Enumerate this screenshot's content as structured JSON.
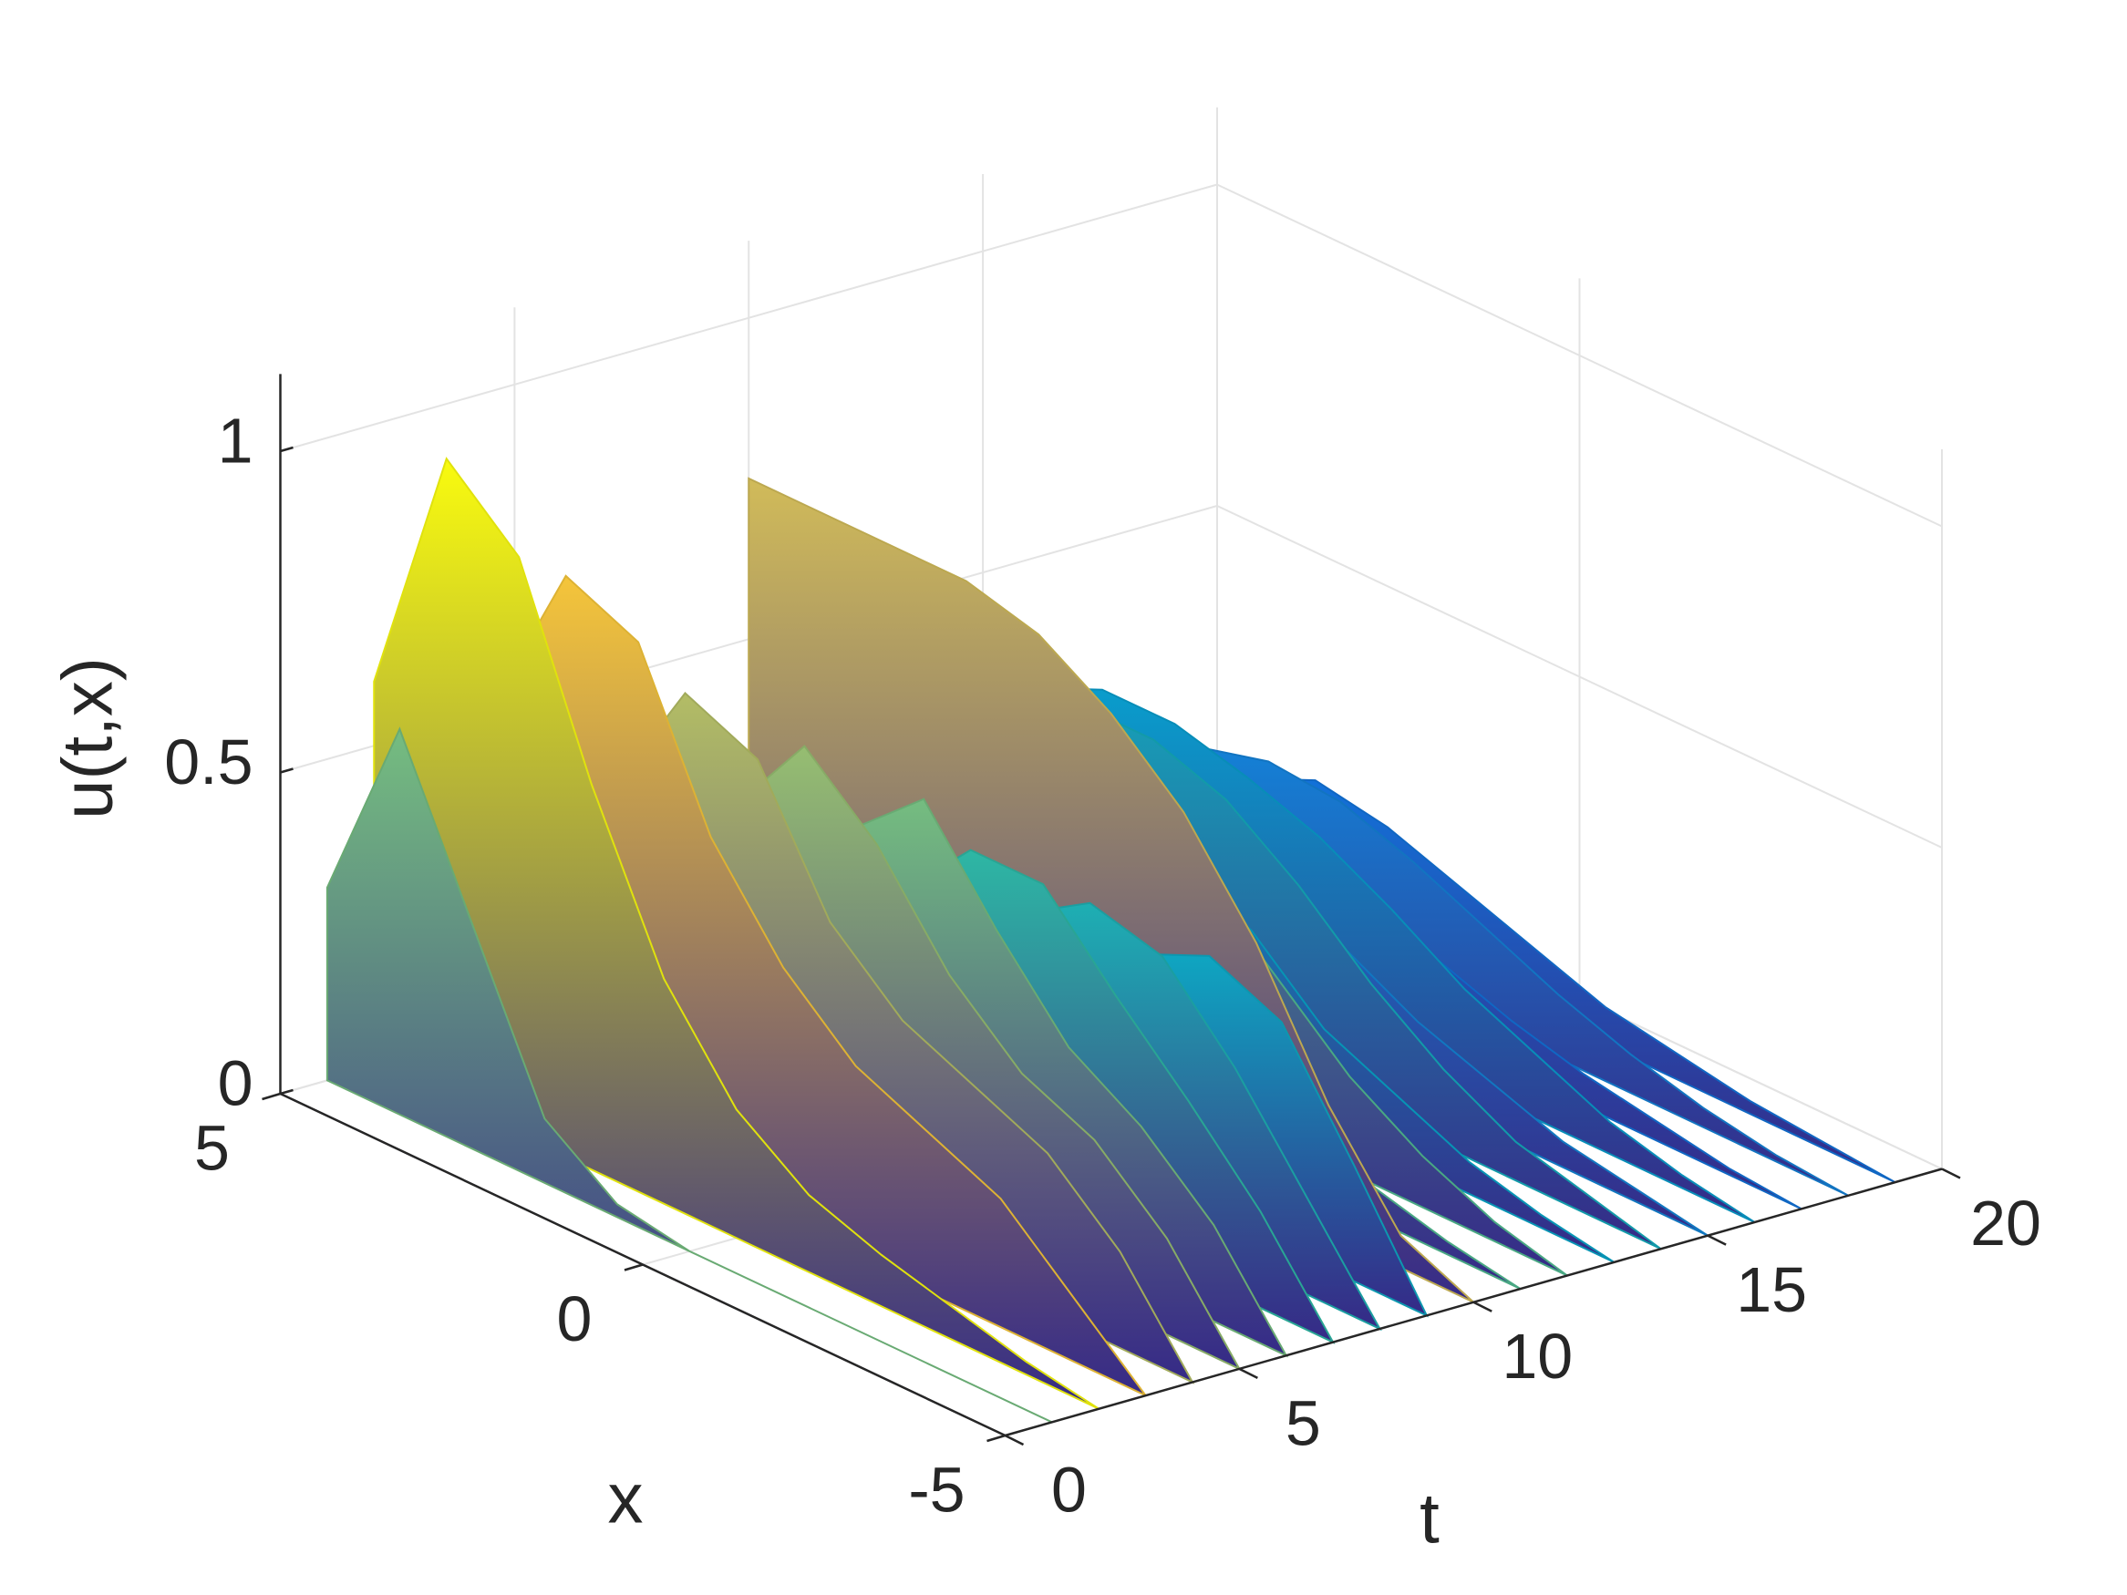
{
  "chart_data": {
    "type": "waterfall3d",
    "xlabel": "x",
    "ylabel": "t",
    "zlabel": "u(t,x)",
    "x": [
      -5,
      -4,
      -3,
      -2,
      -1,
      0,
      1,
      2,
      3,
      4,
      5
    ],
    "series": [
      {
        "t": 0,
        "values": [
          0,
          0,
          0,
          0,
          0,
          0,
          0,
          0,
          0,
          0,
          0
        ]
      },
      {
        "t": 1,
        "values": [
          0,
          0,
          0,
          0,
          0,
          0,
          0.02,
          0.1,
          0.35,
          0.6,
          0.3
        ]
      },
      {
        "t": 2,
        "values": [
          0,
          0.02,
          0.05,
          0.08,
          0.12,
          0.2,
          0.35,
          0.6,
          0.9,
          1.0,
          0.6
        ]
      },
      {
        "t": 3,
        "values": [
          0,
          0.1,
          0.2,
          0.25,
          0.3,
          0.4,
          0.55,
          0.8,
          0.85,
          0.6,
          0.3
        ]
      },
      {
        "t": 4,
        "values": [
          0,
          0.15,
          0.25,
          0.3,
          0.35,
          0.45,
          0.65,
          0.7,
          0.5,
          0.35,
          0.2
        ]
      },
      {
        "t": 5,
        "values": [
          0,
          0.15,
          0.25,
          0.3,
          0.4,
          0.55,
          0.65,
          0.5,
          0.35,
          0.25,
          0.15
        ]
      },
      {
        "t": 6,
        "values": [
          0,
          0.15,
          0.25,
          0.32,
          0.45,
          0.6,
          0.5,
          0.35,
          0.25,
          0.18,
          0.1
        ]
      },
      {
        "t": 7,
        "values": [
          0,
          0.15,
          0.27,
          0.38,
          0.5,
          0.5,
          0.38,
          0.27,
          0.2,
          0.14,
          0.08
        ]
      },
      {
        "t": 8,
        "values": [
          0,
          0.15,
          0.3,
          0.42,
          0.45,
          0.38,
          0.3,
          0.22,
          0.16,
          0.1,
          0.06
        ]
      },
      {
        "t": 9,
        "values": [
          0,
          0.18,
          0.35,
          0.4,
          0.35,
          0.3,
          0.24,
          0.18,
          0.12,
          0.08,
          0.04
        ]
      },
      {
        "t": 10,
        "values": [
          0,
          0.05,
          0.2,
          0.4,
          0.55,
          0.65,
          0.72,
          0.75,
          0.75,
          0.75,
          0.75
        ]
      },
      {
        "t": 11,
        "values": [
          0,
          0.02,
          0.05,
          0.1,
          0.2,
          0.3,
          0.4,
          0.5,
          0.55,
          0.55,
          0.5
        ]
      },
      {
        "t": 12,
        "values": [
          0,
          0.03,
          0.08,
          0.15,
          0.25,
          0.35,
          0.45,
          0.5,
          0.55,
          0.55,
          0.55
        ]
      },
      {
        "t": 13,
        "values": [
          0,
          0.02,
          0.05,
          0.1,
          0.15,
          0.25,
          0.3,
          0.35,
          0.38,
          0.38,
          0.35
        ]
      },
      {
        "t": 14,
        "values": [
          0,
          0.03,
          0.06,
          0.12,
          0.2,
          0.3,
          0.38,
          0.42,
          0.42,
          0.42,
          0.4
        ]
      },
      {
        "t": 15,
        "values": [
          0,
          0.02,
          0.04,
          0.08,
          0.12,
          0.18,
          0.22,
          0.25,
          0.26,
          0.25,
          0.22
        ]
      },
      {
        "t": 16,
        "values": [
          0,
          0.02,
          0.05,
          0.1,
          0.15,
          0.22,
          0.28,
          0.32,
          0.35,
          0.35,
          0.3
        ]
      },
      {
        "t": 17,
        "values": [
          0,
          0.01,
          0.03,
          0.05,
          0.08,
          0.12,
          0.15,
          0.18,
          0.2,
          0.2,
          0.18
        ]
      },
      {
        "t": 18,
        "values": [
          0,
          0.01,
          0.03,
          0.06,
          0.1,
          0.15,
          0.2,
          0.24,
          0.25,
          0.22,
          0.15
        ]
      },
      {
        "t": 19,
        "values": [
          0,
          0.01,
          0.02,
          0.04,
          0.06,
          0.1,
          0.14,
          0.18,
          0.2,
          0.15,
          0.08
        ]
      }
    ],
    "xlim": [
      -5,
      5
    ],
    "xticks": [
      -5,
      0,
      5
    ],
    "ylim": [
      0,
      20
    ],
    "yticks": [
      0,
      5,
      10,
      15,
      20
    ],
    "zlim": [
      0,
      1.12
    ],
    "zticks": [
      0,
      0.5,
      1
    ],
    "grid": true,
    "colormap": [
      "#352a87",
      "#0f5cdd",
      "#1481d6",
      "#06a4ca",
      "#2eb7a4",
      "#87bf77",
      "#d1bb59",
      "#fec832",
      "#f9fb0e"
    ]
  }
}
